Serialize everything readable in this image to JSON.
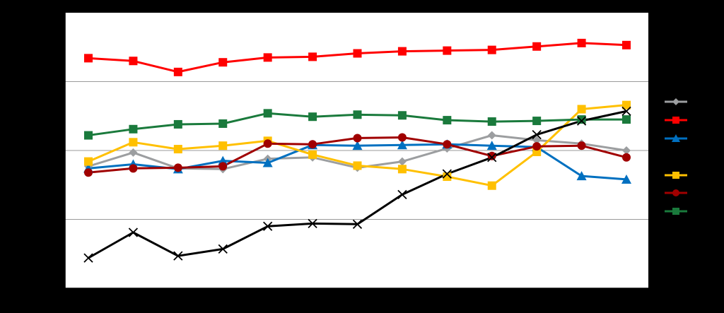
{
  "chart_data": {
    "type": "line",
    "title": "",
    "xlabel": "",
    "ylabel": "",
    "x": [
      1,
      2,
      3,
      4,
      5,
      6,
      7,
      8,
      9,
      10,
      11,
      12,
      13
    ],
    "ylim": [
      0,
      4
    ],
    "grid": true,
    "legend_position": "right",
    "background": "#ffffff",
    "series": [
      {
        "color": "#ff0000",
        "marker": "square",
        "values": [
          3.34,
          3.3,
          3.14,
          3.28,
          3.35,
          3.36,
          3.41,
          3.44,
          3.45,
          3.46,
          3.51,
          3.56,
          3.53
        ]
      },
      {
        "color": "#9c9ea0",
        "marker": "diamond",
        "values": [
          1.77,
          1.97,
          1.74,
          1.73,
          1.88,
          1.9,
          1.75,
          1.84,
          2.03,
          2.22,
          2.15,
          2.1,
          2.0
        ]
      },
      {
        "color": "#0070c0",
        "marker": "triangle",
        "values": [
          1.74,
          1.8,
          1.73,
          1.85,
          1.82,
          2.08,
          2.07,
          2.08,
          2.09,
          2.07,
          2.05,
          1.63,
          1.58
        ]
      },
      {
        "color": "#ffc000",
        "marker": "square",
        "values": [
          1.84,
          2.12,
          2.02,
          2.07,
          2.14,
          1.94,
          1.78,
          1.73,
          1.62,
          1.49,
          1.98,
          2.6,
          2.66
        ]
      },
      {
        "color": "#a00000",
        "marker": "circle",
        "values": [
          1.68,
          1.74,
          1.75,
          1.77,
          2.1,
          2.09,
          2.18,
          2.19,
          2.09,
          1.92,
          2.06,
          2.07,
          1.9
        ]
      },
      {
        "color": "#1a7a3c",
        "marker": "square",
        "values": [
          2.22,
          2.31,
          2.38,
          2.39,
          2.54,
          2.49,
          2.52,
          2.51,
          2.44,
          2.42,
          2.43,
          2.45,
          2.45
        ]
      },
      {
        "color": "#000000",
        "marker": "x",
        "values": [
          0.44,
          0.81,
          0.47,
          0.57,
          0.9,
          0.94,
          0.93,
          1.36,
          1.66,
          1.9,
          2.23,
          2.43,
          2.57
        ]
      }
    ]
  }
}
